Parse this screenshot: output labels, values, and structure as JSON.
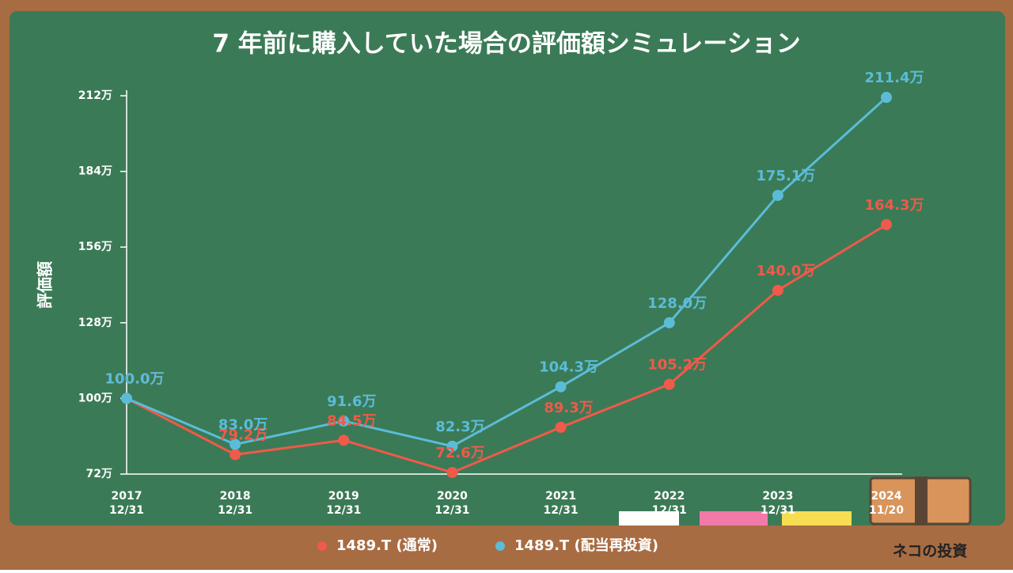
{
  "chart_data": {
    "type": "line",
    "title": "7 年前に購入していた場合の評価額シミュレーション",
    "y_label": "評価額",
    "categories": [
      [
        "2017",
        "12/31"
      ],
      [
        "2018",
        "12/31"
      ],
      [
        "2019",
        "12/31"
      ],
      [
        "2020",
        "12/31"
      ],
      [
        "2021",
        "12/31"
      ],
      [
        "2022",
        "12/31"
      ],
      [
        "2023",
        "12/31"
      ],
      [
        "2024",
        "11/20"
      ]
    ],
    "ylim": [
      72,
      212
    ],
    "yticks": [
      {
        "value": 72,
        "label": "72万"
      },
      {
        "value": 100,
        "label": "100万"
      },
      {
        "value": 128,
        "label": "128万"
      },
      {
        "value": 156,
        "label": "156万"
      },
      {
        "value": 184,
        "label": "184万"
      },
      {
        "value": 212,
        "label": "212万"
      }
    ],
    "series": [
      {
        "name": "1489.T (通常)",
        "color": "#ef5a4a",
        "values": [
          100.0,
          79.2,
          84.5,
          72.6,
          89.3,
          105.2,
          140.0,
          164.3
        ],
        "value_labels": [
          "100.0万",
          "79.2万",
          "84.5万",
          "72.6万",
          "89.3万",
          "105.2万",
          "140.0万",
          "164.3万"
        ]
      },
      {
        "name": "1489.T (配当再投資)",
        "color": "#5bbcd8",
        "values": [
          100.0,
          83.0,
          91.6,
          82.3,
          104.3,
          128.0,
          175.1,
          211.4
        ],
        "value_labels": [
          "100.0万",
          "83.0万",
          "91.6万",
          "82.3万",
          "104.3万",
          "128.0万",
          "175.1万",
          "211.4万"
        ]
      }
    ]
  },
  "brand": "ネコの投資"
}
